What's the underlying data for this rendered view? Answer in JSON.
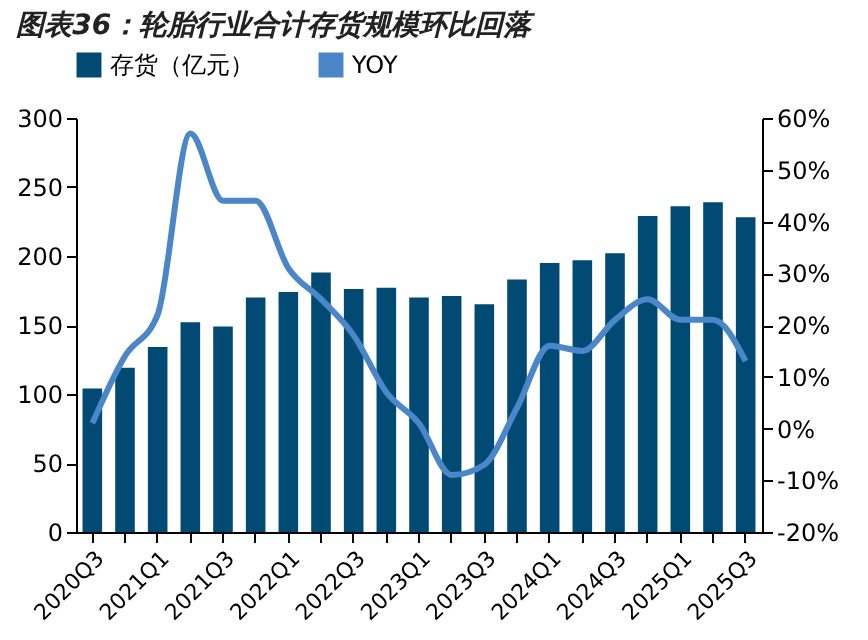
{
  "chart_data": {
    "type": "bar",
    "title": "图表36：轮胎行业合计存货规模环比回落",
    "categories": [
      "2020Q3",
      null,
      "2021Q1",
      null,
      "2021Q3",
      null,
      "2022Q1",
      null,
      "2022Q3",
      null,
      "2023Q1",
      null,
      "2023Q3",
      null,
      "2024Q1",
      null,
      "2024Q3",
      null,
      "2025Q1",
      null,
      "2025Q3"
    ],
    "series": [
      {
        "name": "存货（亿元）",
        "color": "#004a74",
        "values": [
          104,
          119,
          134,
          152,
          149,
          170,
          174,
          188,
          176,
          177,
          170,
          171,
          165,
          183,
          195,
          197,
          202,
          229,
          236,
          239,
          228
        ]
      },
      {
        "name": "YOY",
        "type": "line",
        "axis": "y2",
        "color": "#4a86c8",
        "values": [
          1,
          14,
          22,
          57,
          44,
          44,
          31,
          25,
          18,
          7,
          1,
          -9,
          -7,
          4,
          16,
          15,
          21,
          25,
          21,
          21,
          13
        ]
      }
    ],
    "ylim": [
      0,
      300
    ],
    "yticks": [
      0,
      50,
      100,
      150,
      200,
      250,
      300
    ],
    "y2lim": [
      -20,
      60
    ],
    "y2ticks": [
      {
        "value": -20,
        "label": "-20%"
      },
      {
        "value": -10,
        "label": "-10%"
      },
      {
        "value": 0,
        "label": "0%"
      },
      {
        "value": 10,
        "label": "10%"
      },
      {
        "value": 20,
        "label": "20%"
      },
      {
        "value": 30,
        "label": "30%"
      },
      {
        "value": 40,
        "label": "40%"
      },
      {
        "value": 50,
        "label": "50%"
      },
      {
        "value": 60,
        "label": "60%"
      }
    ],
    "legend": "top",
    "grid": false
  }
}
